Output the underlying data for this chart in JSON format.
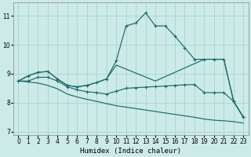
{
  "bg_color": "#cceae8",
  "grid_color": "#aad4d0",
  "line_color": "#1a6b6b",
  "xlabel": "Humidex (Indice chaleur)",
  "xlim": [
    -0.5,
    23.5
  ],
  "ylim": [
    6.9,
    11.45
  ],
  "yticks": [
    7,
    8,
    9,
    10,
    11
  ],
  "xticks": [
    0,
    1,
    2,
    3,
    4,
    5,
    6,
    7,
    8,
    9,
    10,
    11,
    12,
    13,
    14,
    15,
    16,
    17,
    18,
    19,
    20,
    21,
    22,
    23
  ],
  "curve1_x": [
    0,
    1,
    2,
    3,
    4,
    5,
    6,
    7,
    8,
    9,
    10,
    11,
    12,
    13,
    14,
    15,
    16,
    17,
    18,
    19,
    20,
    21,
    22,
    23
  ],
  "curve1_y": [
    8.75,
    8.93,
    9.05,
    9.08,
    8.82,
    8.6,
    8.55,
    8.6,
    8.7,
    8.82,
    9.45,
    10.65,
    10.75,
    11.1,
    10.65,
    10.65,
    10.3,
    9.9,
    9.5,
    9.5,
    9.5,
    9.5,
    8.05,
    7.5
  ],
  "curve2_x": [
    0,
    1,
    2,
    3,
    4,
    5,
    6,
    7,
    8,
    9,
    10,
    14,
    19,
    20,
    21,
    22,
    23
  ],
  "curve2_y": [
    8.75,
    8.93,
    9.05,
    9.08,
    8.82,
    8.6,
    8.55,
    8.6,
    8.7,
    8.82,
    9.3,
    8.75,
    9.5,
    9.5,
    9.5,
    8.05,
    7.5
  ],
  "curve3_x": [
    0,
    1,
    2,
    3,
    4,
    5,
    6,
    7,
    8,
    9,
    10,
    11,
    12,
    13,
    14,
    15,
    16,
    17,
    18,
    19,
    20,
    21,
    22,
    23
  ],
  "curve3_y": [
    8.75,
    8.75,
    8.88,
    8.88,
    8.75,
    8.55,
    8.45,
    8.38,
    8.35,
    8.3,
    8.4,
    8.5,
    8.52,
    8.54,
    8.56,
    8.58,
    8.6,
    8.62,
    8.63,
    8.35,
    8.35,
    8.35,
    8.05,
    7.5
  ],
  "curve4_x": [
    0,
    1,
    2,
    3,
    4,
    5,
    6,
    7,
    8,
    9,
    10,
    11,
    12,
    13,
    14,
    15,
    16,
    17,
    18,
    19,
    20,
    21,
    22,
    23
  ],
  "curve4_y": [
    8.75,
    8.72,
    8.68,
    8.6,
    8.48,
    8.3,
    8.2,
    8.12,
    8.05,
    7.97,
    7.9,
    7.85,
    7.8,
    7.75,
    7.7,
    7.65,
    7.6,
    7.55,
    7.5,
    7.44,
    7.4,
    7.38,
    7.35,
    7.3
  ]
}
